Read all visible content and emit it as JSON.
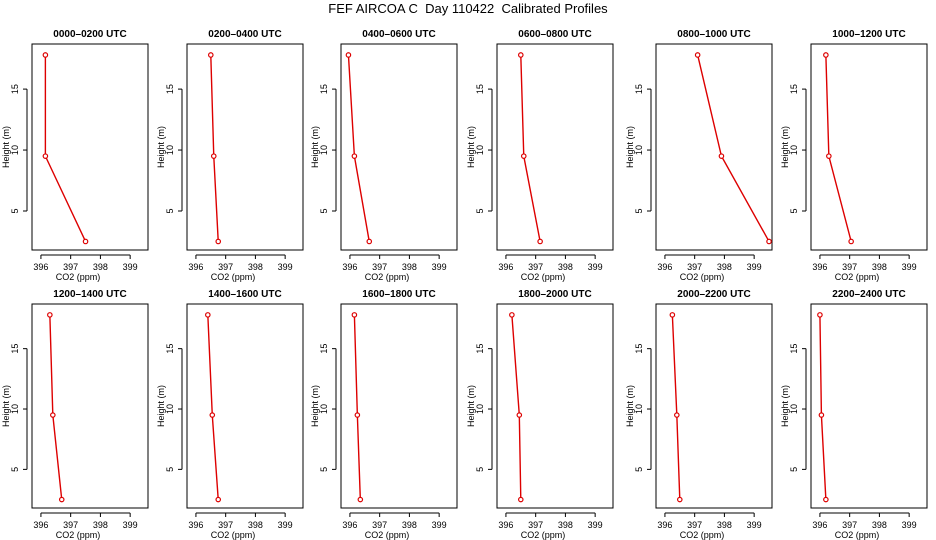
{
  "page": {
    "title": "FEF AIRCOA C  Day 110422  Calibrated Profiles"
  },
  "style": {
    "line_color": "#dd0000",
    "point_color": "#dd0000",
    "frame_color": "#000000"
  },
  "chart_data": [
    {
      "type": "line",
      "title": "0000–0200 UTC",
      "xlabel": "CO2 (ppm)",
      "ylabel": "Height (m)",
      "xlim": [
        395.7,
        399.6
      ],
      "ylim": [
        1.8,
        18.7
      ],
      "xticks": [
        396,
        397,
        398,
        399
      ],
      "yticks": [
        5,
        10,
        15
      ],
      "grid": false,
      "x": [
        397.5,
        396.15,
        396.15
      ],
      "y": [
        2.5,
        9.5,
        17.8
      ]
    },
    {
      "type": "line",
      "title": "0200–0400 UTC",
      "xlabel": "CO2 (ppm)",
      "ylabel": "Height (m)",
      "xlim": [
        395.7,
        399.6
      ],
      "ylim": [
        1.8,
        18.7
      ],
      "xticks": [
        396,
        397,
        398,
        399
      ],
      "yticks": [
        5,
        10,
        15
      ],
      "grid": false,
      "x": [
        396.75,
        396.6,
        396.5
      ],
      "y": [
        2.5,
        9.5,
        17.8
      ]
    },
    {
      "type": "line",
      "title": "0400–0600 UTC",
      "xlabel": "CO2 (ppm)",
      "ylabel": "Height (m)",
      "xlim": [
        395.7,
        399.6
      ],
      "ylim": [
        1.8,
        18.7
      ],
      "xticks": [
        396,
        397,
        398,
        399
      ],
      "yticks": [
        5,
        10,
        15
      ],
      "grid": false,
      "x": [
        396.65,
        396.15,
        395.95
      ],
      "y": [
        2.5,
        9.5,
        17.8
      ]
    },
    {
      "type": "line",
      "title": "0600–0800 UTC",
      "xlabel": "CO2 (ppm)",
      "ylabel": "Height (m)",
      "xlim": [
        395.7,
        399.6
      ],
      "ylim": [
        1.8,
        18.7
      ],
      "xticks": [
        396,
        397,
        398,
        399
      ],
      "yticks": [
        5,
        10,
        15
      ],
      "grid": false,
      "x": [
        397.15,
        396.6,
        396.5
      ],
      "y": [
        2.5,
        9.5,
        17.8
      ]
    },
    {
      "type": "line",
      "title": "0800–1000 UTC",
      "xlabel": "CO2 (ppm)",
      "ylabel": "Height (m)",
      "xlim": [
        395.7,
        399.6
      ],
      "ylim": [
        1.8,
        18.7
      ],
      "xticks": [
        396,
        397,
        398,
        399
      ],
      "yticks": [
        5,
        10,
        15
      ],
      "grid": false,
      "x": [
        399.5,
        397.9,
        397.1
      ],
      "y": [
        2.5,
        9.5,
        17.8
      ]
    },
    {
      "type": "line",
      "title": "1000–1200 UTC",
      "xlabel": "CO2 (ppm)",
      "ylabel": "Height (m)",
      "xlim": [
        395.7,
        399.6
      ],
      "ylim": [
        1.8,
        18.7
      ],
      "xticks": [
        396,
        397,
        398,
        399
      ],
      "yticks": [
        5,
        10,
        15
      ],
      "grid": false,
      "x": [
        397.05,
        396.3,
        396.2
      ],
      "y": [
        2.5,
        9.5,
        17.8
      ]
    },
    {
      "type": "line",
      "title": "1200–1400 UTC",
      "xlabel": "CO2 (ppm)",
      "ylabel": "Height (m)",
      "xlim": [
        395.7,
        399.6
      ],
      "ylim": [
        1.8,
        18.7
      ],
      "xticks": [
        396,
        397,
        398,
        399
      ],
      "yticks": [
        5,
        10,
        15
      ],
      "grid": false,
      "x": [
        396.7,
        396.4,
        396.3
      ],
      "y": [
        2.5,
        9.5,
        17.8
      ]
    },
    {
      "type": "line",
      "title": "1400–1600 UTC",
      "xlabel": "CO2 (ppm)",
      "ylabel": "Height (m)",
      "xlim": [
        395.7,
        399.6
      ],
      "ylim": [
        1.8,
        18.7
      ],
      "xticks": [
        396,
        397,
        398,
        399
      ],
      "yticks": [
        5,
        10,
        15
      ],
      "grid": false,
      "x": [
        396.75,
        396.55,
        396.4
      ],
      "y": [
        2.5,
        9.5,
        17.8
      ]
    },
    {
      "type": "line",
      "title": "1600–1800 UTC",
      "xlabel": "CO2 (ppm)",
      "ylabel": "Height (m)",
      "xlim": [
        395.7,
        399.6
      ],
      "ylim": [
        1.8,
        18.7
      ],
      "xticks": [
        396,
        397,
        398,
        399
      ],
      "yticks": [
        5,
        10,
        15
      ],
      "grid": false,
      "x": [
        396.35,
        396.25,
        396.15
      ],
      "y": [
        2.5,
        9.5,
        17.8
      ]
    },
    {
      "type": "line",
      "title": "1800–2000 UTC",
      "xlabel": "CO2 (ppm)",
      "ylabel": "Height (m)",
      "xlim": [
        395.7,
        399.6
      ],
      "ylim": [
        1.8,
        18.7
      ],
      "xticks": [
        396,
        397,
        398,
        399
      ],
      "yticks": [
        5,
        10,
        15
      ],
      "grid": false,
      "x": [
        396.5,
        396.45,
        396.2
      ],
      "y": [
        2.5,
        9.5,
        17.8
      ]
    },
    {
      "type": "line",
      "title": "2000–2200 UTC",
      "xlabel": "CO2 (ppm)",
      "ylabel": "Height (m)",
      "xlim": [
        395.7,
        399.6
      ],
      "ylim": [
        1.8,
        18.7
      ],
      "xticks": [
        396,
        397,
        398,
        399
      ],
      "yticks": [
        5,
        10,
        15
      ],
      "grid": false,
      "x": [
        396.5,
        396.4,
        396.25
      ],
      "y": [
        2.5,
        9.5,
        17.8
      ]
    },
    {
      "type": "line",
      "title": "2200–2400 UTC",
      "xlabel": "CO2 (ppm)",
      "ylabel": "Height (m)",
      "xlim": [
        395.7,
        399.6
      ],
      "ylim": [
        1.8,
        18.7
      ],
      "xticks": [
        396,
        397,
        398,
        399
      ],
      "yticks": [
        5,
        10,
        15
      ],
      "grid": false,
      "x": [
        396.2,
        396.05,
        396.0
      ],
      "y": [
        2.5,
        9.5,
        17.8
      ]
    }
  ]
}
